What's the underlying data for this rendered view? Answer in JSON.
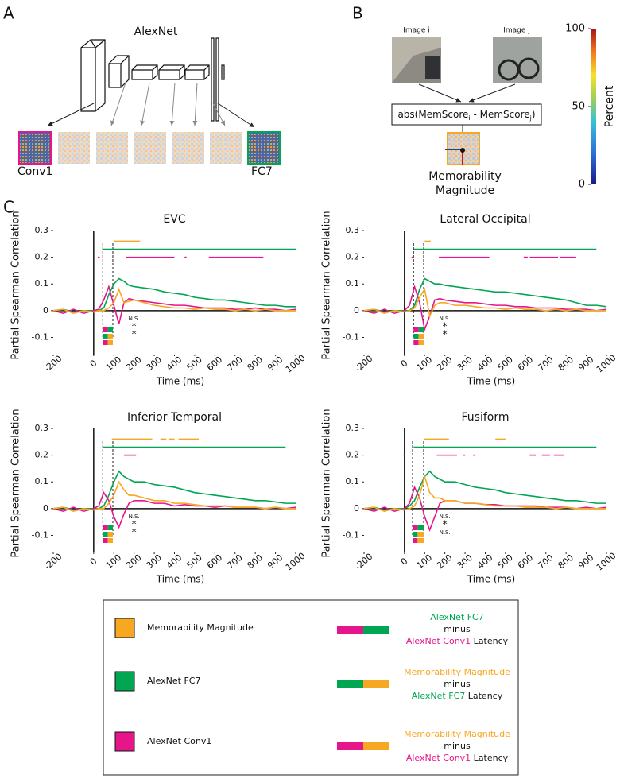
{
  "panel_labels": [
    "A",
    "B",
    "C"
  ],
  "panel_a": {
    "title": "AlexNet",
    "first_layer": "Conv1",
    "last_layer": "FC7"
  },
  "panel_b": {
    "image_i": "Image i",
    "image_j": "Image j",
    "formula": [
      "abs(MemScore",
      "i",
      " - MemScore",
      "j",
      ")"
    ],
    "output": [
      "Memorability",
      "Magnitude"
    ]
  },
  "colorbar": {
    "label": "Percent",
    "lim": [
      0,
      100
    ],
    "ticks": [
      0,
      50,
      100
    ]
  },
  "chart_data": [
    {
      "type": "line",
      "title": "EVC",
      "y_label": "Partial Spearman Correlation",
      "x_label": "Time (ms)",
      "x": [
        -200,
        -150,
        -100,
        -50,
        0,
        25,
        50,
        75,
        100,
        125,
        150,
        175,
        200,
        250,
        300,
        350,
        400,
        450,
        500,
        550,
        600,
        650,
        700,
        750,
        800,
        850,
        900,
        950,
        1000
      ],
      "xlim": [
        -200,
        1000
      ],
      "xticks": [
        -200,
        0,
        100,
        200,
        300,
        400,
        500,
        600,
        700,
        800,
        900,
        1000
      ],
      "ylim": [
        -0.17,
        0.3
      ],
      "yticks": [
        -0.1,
        0,
        0.1,
        0.2,
        0.3
      ],
      "series": [
        {
          "color": "#00a651",
          "values": [
            0,
            0.005,
            -0.005,
            0,
            0,
            0,
            0.01,
            0.06,
            0.1,
            0.12,
            0.11,
            0.095,
            0.09,
            0.085,
            0.08,
            0.07,
            0.065,
            0.06,
            0.05,
            0.045,
            0.04,
            0.04,
            0.035,
            0.03,
            0.025,
            0.02,
            0.02,
            0.015,
            0.015
          ]
        },
        {
          "color": "#e6168a",
          "values": [
            0,
            -0.01,
            0.005,
            -0.01,
            0,
            0.005,
            0.04,
            0.09,
            0.02,
            -0.05,
            0.03,
            0.045,
            0.04,
            0.035,
            0.03,
            0.025,
            0.02,
            0.02,
            0.015,
            0.01,
            0.01,
            0.01,
            0.005,
            0.005,
            0.01,
            0.005,
            0.005,
            0,
            0.005
          ]
        },
        {
          "color": "#f7a823",
          "values": [
            0,
            0.005,
            -0.01,
            0,
            -0.005,
            0,
            0,
            0.01,
            0.03,
            0.08,
            0.03,
            0.035,
            0.04,
            0.03,
            0.02,
            0.015,
            0.01,
            0.01,
            0.005,
            0.01,
            0.005,
            0.005,
            0,
            0.005,
            0,
            0.005,
            0,
            0,
            0
          ]
        }
      ],
      "significance": [
        {
          "color": "#f7a823",
          "y": 0.26,
          "ranges": [
            [
              100,
              230
            ]
          ]
        },
        {
          "color": "#00a651",
          "y": 0.23,
          "ranges": [
            [
              45,
              1000
            ]
          ]
        },
        {
          "color": "#e6168a",
          "y": 0.2,
          "ranges": [
            [
              20,
              30
            ],
            [
              160,
              400
            ],
            [
              450,
              460
            ],
            [
              570,
              840
            ]
          ]
        }
      ],
      "onsets": [
        45,
        95
      ],
      "latency_bars": [
        {
          "start": 45,
          "split": 70,
          "end": 95
        },
        {
          "start": 45,
          "split": 70,
          "end": 95
        },
        {
          "start": 45,
          "split": 70,
          "end": 95
        }
      ],
      "annotations": [
        "N.S.",
        "*",
        "*"
      ]
    },
    {
      "type": "line",
      "title": "Lateral Occipital",
      "y_label": "Partial Spearman Correlation",
      "x_label": "Time (ms)",
      "x": [
        -200,
        -150,
        -100,
        -50,
        0,
        25,
        50,
        75,
        100,
        125,
        150,
        175,
        200,
        250,
        300,
        350,
        400,
        450,
        500,
        550,
        600,
        650,
        700,
        750,
        800,
        850,
        900,
        950,
        1000
      ],
      "xlim": [
        -200,
        1000
      ],
      "xticks": [
        -200,
        0,
        100,
        200,
        300,
        400,
        500,
        600,
        700,
        800,
        900,
        1000
      ],
      "ylim": [
        -0.17,
        0.3
      ],
      "yticks": [
        -0.1,
        0,
        0.1,
        0.2,
        0.3
      ],
      "series": [
        {
          "color": "#00a651",
          "values": [
            0,
            0.005,
            -0.005,
            0,
            0,
            0,
            0.02,
            0.08,
            0.12,
            0.11,
            0.1,
            0.1,
            0.095,
            0.09,
            0.085,
            0.08,
            0.075,
            0.07,
            0.07,
            0.065,
            0.06,
            0.055,
            0.05,
            0.045,
            0.04,
            0.03,
            0.02,
            0.02,
            0.015
          ]
        },
        {
          "color": "#e6168a",
          "values": [
            0,
            -0.01,
            0.005,
            -0.01,
            0,
            0.02,
            0.09,
            0.03,
            -0.07,
            -0.02,
            0.04,
            0.045,
            0.04,
            0.035,
            0.03,
            0.03,
            0.025,
            0.02,
            0.02,
            0.015,
            0.015,
            0.01,
            0.01,
            0.01,
            0.005,
            0.005,
            0.005,
            0,
            0.005
          ]
        },
        {
          "color": "#f7a823",
          "values": [
            0,
            0.005,
            -0.01,
            0,
            -0.005,
            0,
            0.01,
            0.05,
            0.08,
            -0.02,
            0.02,
            0.03,
            0.03,
            0.02,
            0.02,
            0.015,
            0.01,
            0.01,
            0.005,
            0.01,
            0.005,
            0.005,
            0,
            0.005,
            0,
            0.005,
            0,
            0,
            0
          ]
        }
      ],
      "significance": [
        {
          "color": "#f7a823",
          "y": 0.26,
          "ranges": [
            [
              100,
              130
            ]
          ]
        },
        {
          "color": "#00a651",
          "y": 0.23,
          "ranges": [
            [
              45,
              950
            ]
          ]
        },
        {
          "color": "#e6168a",
          "y": 0.2,
          "ranges": [
            [
              35,
              40
            ],
            [
              170,
              420
            ],
            [
              590,
              610
            ],
            [
              620,
              760
            ],
            [
              770,
              850
            ]
          ]
        }
      ],
      "onsets": [
        45,
        95
      ],
      "latency_bars": [
        {
          "start": 45,
          "split": 70,
          "end": 95
        },
        {
          "start": 45,
          "split": 70,
          "end": 95
        },
        {
          "start": 45,
          "split": 70,
          "end": 95
        }
      ],
      "annotations": [
        "N.S.",
        "*",
        "*"
      ]
    },
    {
      "type": "line",
      "title": "Inferior Temporal",
      "y_label": "Partial Spearman Correlation",
      "x_label": "Time (ms)",
      "x": [
        -200,
        -150,
        -100,
        -50,
        0,
        25,
        50,
        75,
        100,
        125,
        150,
        175,
        200,
        250,
        300,
        350,
        400,
        450,
        500,
        550,
        600,
        650,
        700,
        750,
        800,
        850,
        900,
        950,
        1000
      ],
      "xlim": [
        -200,
        1000
      ],
      "xticks": [
        -200,
        0,
        100,
        200,
        300,
        400,
        500,
        600,
        700,
        800,
        900,
        1000
      ],
      "ylim": [
        -0.17,
        0.3
      ],
      "yticks": [
        -0.1,
        0,
        0.1,
        0.2,
        0.3
      ],
      "series": [
        {
          "color": "#00a651",
          "values": [
            0,
            0.005,
            -0.005,
            0,
            0,
            0,
            0.01,
            0.05,
            0.1,
            0.14,
            0.12,
            0.11,
            0.1,
            0.1,
            0.09,
            0.085,
            0.08,
            0.07,
            0.06,
            0.055,
            0.05,
            0.045,
            0.04,
            0.035,
            0.03,
            0.03,
            0.025,
            0.02,
            0.02
          ]
        },
        {
          "color": "#e6168a",
          "values": [
            0,
            -0.01,
            0.005,
            -0.01,
            0,
            0.01,
            0.06,
            0.03,
            -0.03,
            -0.07,
            -0.02,
            0.02,
            0.03,
            0.03,
            0.02,
            0.02,
            0.01,
            0.015,
            0.01,
            0.01,
            0.005,
            0.01,
            0.005,
            0.005,
            0.005,
            0,
            0.005,
            0,
            0.005
          ]
        },
        {
          "color": "#f7a823",
          "values": [
            0,
            0.005,
            -0.01,
            0,
            -0.005,
            0,
            0,
            0.02,
            0.05,
            0.1,
            0.07,
            0.05,
            0.05,
            0.04,
            0.03,
            0.03,
            0.02,
            0.02,
            0.015,
            0.01,
            0.01,
            0.01,
            0.005,
            0.005,
            0.005,
            0,
            0.005,
            0,
            0
          ]
        }
      ],
      "significance": [
        {
          "color": "#f7a823",
          "y": 0.26,
          "ranges": [
            [
              90,
              290
            ],
            [
              330,
              360
            ],
            [
              370,
              400
            ],
            [
              420,
              520
            ]
          ]
        },
        {
          "color": "#00a651",
          "y": 0.23,
          "ranges": [
            [
              45,
              950
            ]
          ]
        },
        {
          "color": "#e6168a",
          "y": 0.2,
          "ranges": [
            [
              150,
              210
            ]
          ]
        }
      ],
      "onsets": [
        45,
        95
      ],
      "latency_bars": [
        {
          "start": 45,
          "split": 70,
          "end": 95
        },
        {
          "start": 45,
          "split": 70,
          "end": 95
        },
        {
          "start": 45,
          "split": 70,
          "end": 95
        }
      ],
      "annotations": [
        "N.S.",
        "*",
        "*"
      ]
    },
    {
      "type": "line",
      "title": "Fusiform",
      "y_label": "Partial Spearman Correlation",
      "x_label": "Time (ms)",
      "x": [
        -200,
        -150,
        -100,
        -50,
        0,
        25,
        50,
        75,
        100,
        125,
        150,
        175,
        200,
        250,
        300,
        350,
        400,
        450,
        500,
        550,
        600,
        650,
        700,
        750,
        800,
        850,
        900,
        950,
        1000
      ],
      "xlim": [
        -200,
        1000
      ],
      "xticks": [
        -200,
        0,
        100,
        200,
        300,
        400,
        500,
        600,
        700,
        800,
        900,
        1000
      ],
      "ylim": [
        -0.17,
        0.3
      ],
      "yticks": [
        -0.1,
        0,
        0.1,
        0.2,
        0.3
      ],
      "series": [
        {
          "color": "#00a651",
          "values": [
            0,
            0.005,
            -0.005,
            0,
            0,
            0.01,
            0.03,
            0.08,
            0.12,
            0.14,
            0.12,
            0.11,
            0.1,
            0.1,
            0.09,
            0.08,
            0.075,
            0.07,
            0.06,
            0.055,
            0.05,
            0.045,
            0.04,
            0.035,
            0.03,
            0.03,
            0.025,
            0.02,
            0.02
          ]
        },
        {
          "color": "#e6168a",
          "values": [
            0,
            -0.01,
            0.005,
            -0.01,
            0,
            0.02,
            0.08,
            0.04,
            -0.03,
            -0.08,
            -0.03,
            0.02,
            0.03,
            0.03,
            0.02,
            0.02,
            0.015,
            0.015,
            0.01,
            0.01,
            0.01,
            0.01,
            0.005,
            0.005,
            0.005,
            0,
            0.005,
            0,
            0.005
          ]
        },
        {
          "color": "#f7a823",
          "values": [
            0,
            0.005,
            -0.01,
            0,
            -0.005,
            0,
            0.01,
            0.05,
            0.12,
            0.06,
            0.04,
            0.04,
            0.03,
            0.03,
            0.02,
            0.02,
            0.015,
            0.01,
            0.01,
            0.01,
            0.005,
            0.005,
            0.005,
            0,
            0.005,
            0,
            0,
            0,
            0
          ]
        }
      ],
      "significance": [
        {
          "color": "#f7a823",
          "y": 0.26,
          "ranges": [
            [
              95,
              220
            ],
            [
              450,
              500
            ]
          ]
        },
        {
          "color": "#00a651",
          "y": 0.23,
          "ranges": [
            [
              45,
              950
            ]
          ]
        },
        {
          "color": "#e6168a",
          "y": 0.2,
          "ranges": [
            [
              -5,
              0
            ],
            [
              160,
              260
            ],
            [
              290,
              300
            ],
            [
              340,
              350
            ],
            [
              620,
              650
            ],
            [
              680,
              720
            ],
            [
              740,
              790
            ]
          ]
        }
      ],
      "onsets": [
        40,
        95
      ],
      "latency_bars": [
        {
          "start": 40,
          "split": 65,
          "end": 95
        },
        {
          "start": 40,
          "split": 65,
          "end": 95
        },
        {
          "start": 40,
          "split": 65,
          "end": 95
        }
      ],
      "annotations": [
        "N.S.",
        "*",
        "N.S."
      ]
    }
  ],
  "legend": {
    "items": [
      {
        "label": "Memorability Magnitude",
        "color": "#f7a823"
      },
      {
        "label": "AlexNet FC7",
        "color": "#00a651"
      },
      {
        "label": "AlexNet Conv1",
        "color": "#e6168a"
      }
    ],
    "differences": [
      {
        "top": "AlexNet FC7",
        "middle": "minus",
        "bottom": "AlexNet Conv1",
        "suffix": " Latency",
        "colors": [
          "#e6168a",
          "#00a651"
        ]
      },
      {
        "top": "Memorability Magnitude",
        "middle": "minus",
        "bottom": "AlexNet FC7",
        "suffix": " Latency",
        "colors": [
          "#00a651",
          "#f7a823"
        ]
      },
      {
        "top": "Memorability Magnitude",
        "middle": "minus",
        "bottom": "AlexNet Conv1",
        "suffix": " Latency",
        "colors": [
          "#e6168a",
          "#f7a823"
        ]
      }
    ]
  }
}
